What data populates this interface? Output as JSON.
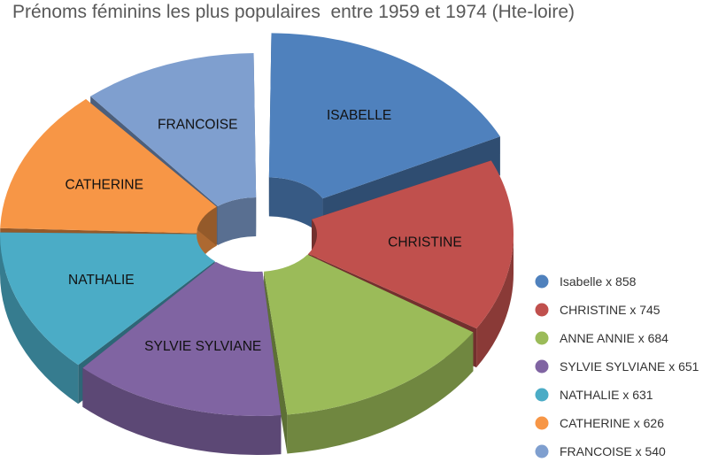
{
  "chart_data": {
    "type": "pie",
    "style": "3d-exploded-doughnut",
    "title": "Prénoms féminins les plus populaires  entre 1959 et 1974 (Hte-loire)",
    "legend_position": "right",
    "slices": [
      {
        "label": "ISABELLE",
        "legend": "Isabelle x 858",
        "value": 858,
        "color": "#4F81BD",
        "exploded": true
      },
      {
        "label": "CHRISTINE",
        "legend": "CHRISTINE x 745",
        "value": 745,
        "color": "#C0504D",
        "exploded": false
      },
      {
        "label": "",
        "legend": "ANNE ANNIE x 684",
        "value": 684,
        "color": "#9BBB59",
        "exploded": false
      },
      {
        "label": "SYLVIE SYLVIANE",
        "legend": "SYLVIE SYLVIANE x 651",
        "value": 651,
        "color": "#8064A2",
        "exploded": false
      },
      {
        "label": "NATHALIE",
        "legend": "NATHALIE x 631",
        "value": 631,
        "color": "#4BACC6",
        "exploded": false
      },
      {
        "label": "CATHERINE",
        "legend": "CATHERINE x 626",
        "value": 626,
        "color": "#F79646",
        "exploded": false
      },
      {
        "label": "FRANCOISE",
        "legend": "FRANCOISE x 540",
        "value": 540,
        "color": "#7F9FCF",
        "exploded": false
      }
    ]
  }
}
